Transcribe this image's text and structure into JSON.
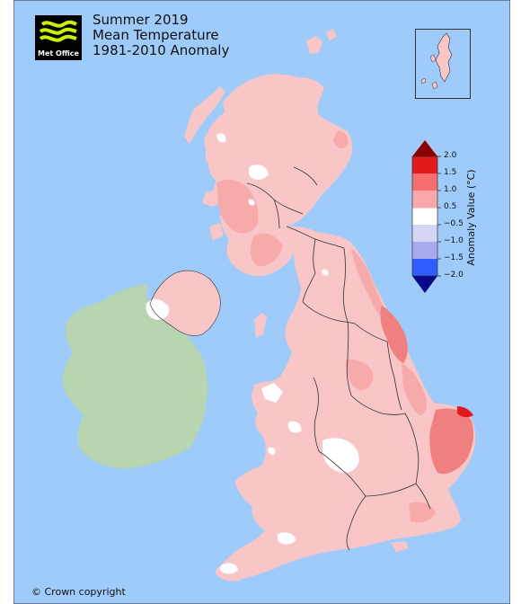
{
  "title": {
    "line1": "Summer 2019",
    "line2": "Mean Temperature",
    "line3": "1981-2010 Anomaly"
  },
  "logo": {
    "text": "Met Office",
    "icon": "met-office-logo"
  },
  "legend": {
    "title": "Anomaly Value (°C)",
    "ticks": [
      "2.0",
      "1.5",
      "1.0",
      "0.5",
      "−0.5",
      "−1.0",
      "−1.5",
      "−2.0"
    ],
    "colors": [
      "#e31a1c",
      "#f66e6e",
      "#f8a8a8",
      "#fcd2d2",
      "#ffffff",
      "#d5d5f5",
      "#a9a9ee",
      "#6f6ff0",
      "#2f5dff"
    ],
    "extend_high_color": "#8b0000",
    "extend_low_color": "#08088a"
  },
  "colors": {
    "sea": "#9ecbfa",
    "ireland": "#b7d5b1",
    "anomaly_base": "#f8c6c6",
    "anomaly_mid": "#f6aaaa",
    "anomaly_high": "#f07f7f",
    "anomaly_highest": "#e31a1c",
    "boundary": "#333333"
  },
  "copyright": "© Crown copyright"
}
